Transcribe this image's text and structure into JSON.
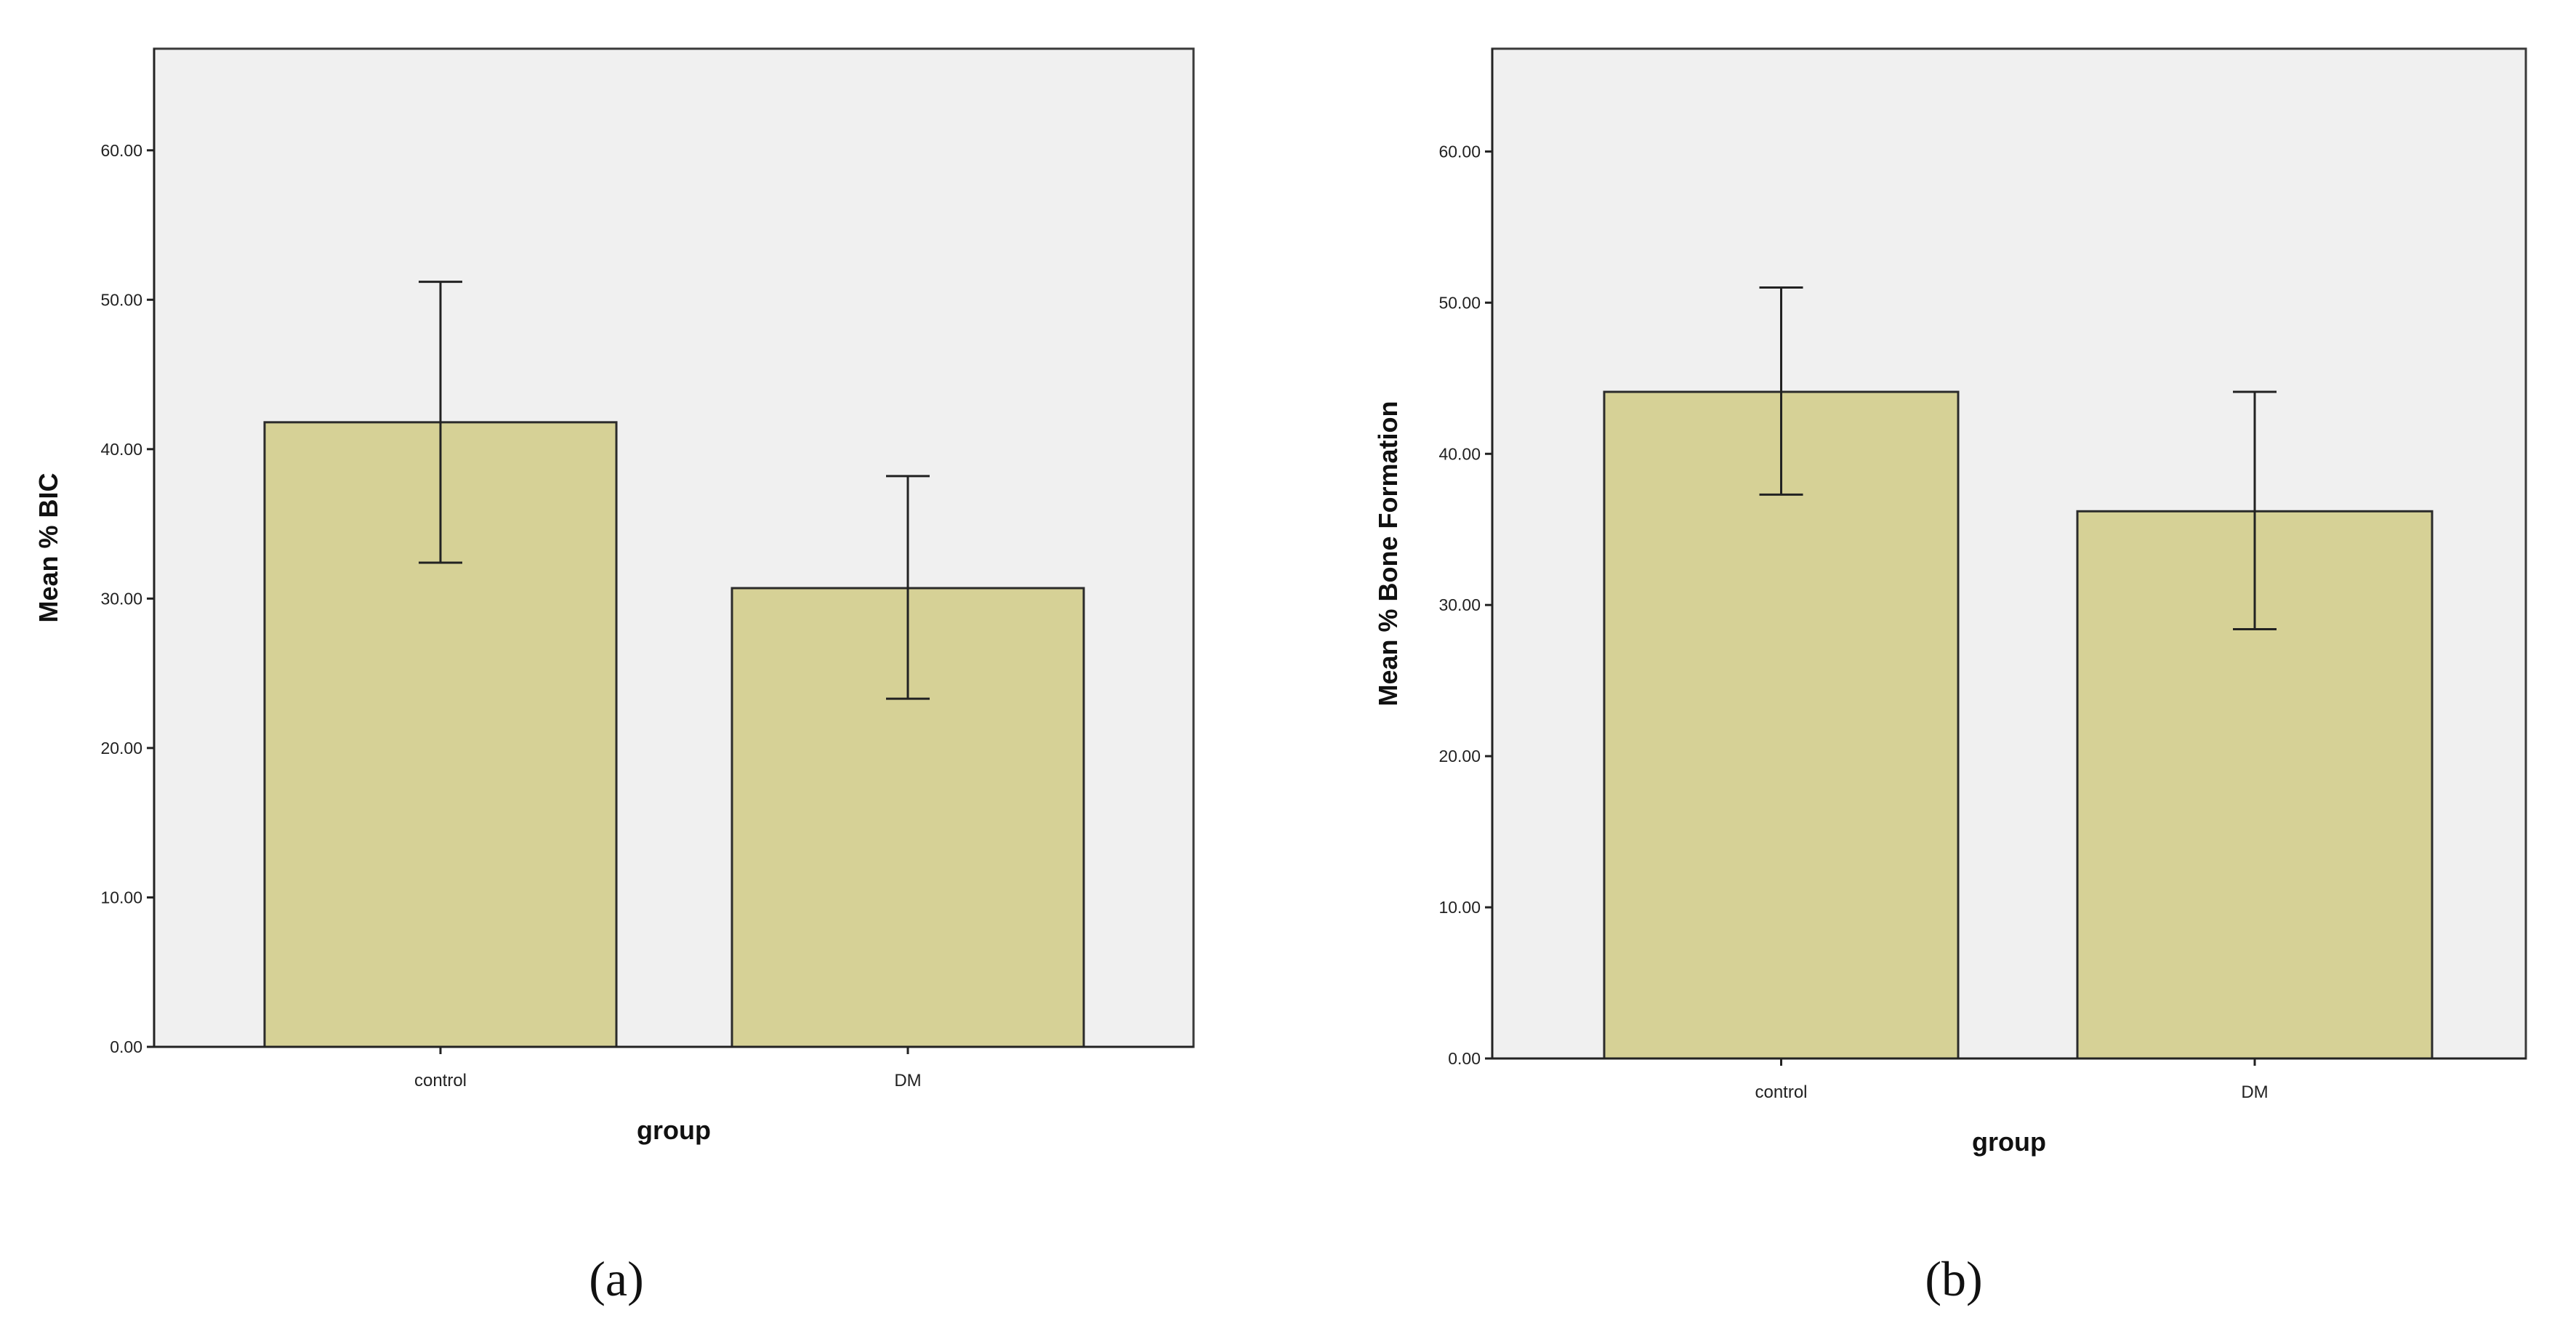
{
  "chart_data": [
    {
      "type": "bar",
      "panel_label": "(a)",
      "categories": [
        "control",
        "DM"
      ],
      "values": [
        41.8,
        30.7
      ],
      "error_low": [
        32.4,
        23.3
      ],
      "error_high": [
        51.2,
        38.2
      ],
      "xlabel": "group",
      "ylabel": "Mean % BIC",
      "ylim": [
        0,
        66.8
      ],
      "yticks": [
        "0.00",
        "10.00",
        "20.00",
        "30.00",
        "40.00",
        "50.00",
        "60.00"
      ],
      "bar_color": "#d6d196",
      "background": "#f0f0f0"
    },
    {
      "type": "bar",
      "panel_label": "(b)",
      "categories": [
        "control",
        "DM"
      ],
      "values": [
        44.1,
        36.2
      ],
      "error_low": [
        37.3,
        28.4
      ],
      "error_high": [
        51.0,
        44.1
      ],
      "xlabel": "group",
      "ylabel": "Mean % Bone Formation",
      "ylim": [
        0,
        66.8
      ],
      "yticks": [
        "0.00",
        "10.00",
        "20.00",
        "30.00",
        "40.00",
        "50.00",
        "60.00"
      ],
      "bar_color": "#d6d196",
      "background": "#f0f0f0"
    }
  ]
}
